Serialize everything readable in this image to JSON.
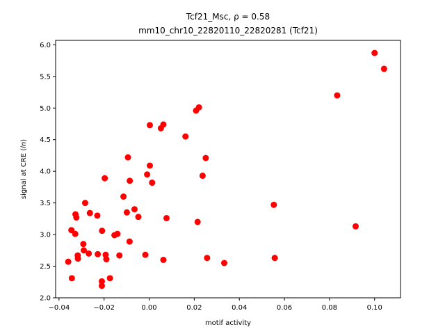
{
  "chart_data": {
    "type": "scatter",
    "title_line1": "Tcf21_Msc, ρ = 0.58",
    "title_line2": "mm10_chr10_22820110_22820281 (Tcf21)",
    "xlabel": "motif activity",
    "ylabel_prefix": "signal at CRE (",
    "ylabel_italic": "ln",
    "ylabel_suffix": ")",
    "xlim": [
      -0.0415,
      0.1115
    ],
    "ylim": [
      2.0,
      6.07
    ],
    "xticks": [
      -0.04,
      -0.02,
      0.0,
      0.02,
      0.04,
      0.06,
      0.08,
      0.1
    ],
    "xtick_labels": [
      "−0.04",
      "−0.02",
      "0.00",
      "0.02",
      "0.04",
      "0.06",
      "0.08",
      "0.10"
    ],
    "yticks": [
      2.0,
      2.5,
      3.0,
      3.5,
      4.0,
      4.5,
      5.0,
      5.5,
      6.0
    ],
    "ytick_labels": [
      "2.0",
      "2.5",
      "3.0",
      "3.5",
      "4.0",
      "4.5",
      "5.0",
      "5.5",
      "6.0"
    ],
    "grid": false,
    "marker_color": "#ff0000",
    "points": [
      {
        "x": 0.1,
        "y": 5.87
      },
      {
        "x": 0.1042,
        "y": 5.62
      },
      {
        "x": 0.0834,
        "y": 5.2
      },
      {
        "x": 0.0916,
        "y": 3.13
      },
      {
        "x": 0.0553,
        "y": 3.47
      },
      {
        "x": 0.0557,
        "y": 2.63
      },
      {
        "x": 0.0333,
        "y": 2.55
      },
      {
        "x": 0.0257,
        "y": 2.63
      },
      {
        "x": 0.0221,
        "y": 5.01
      },
      {
        "x": 0.0208,
        "y": 4.96
      },
      {
        "x": 0.0161,
        "y": 4.55
      },
      {
        "x": 0.0251,
        "y": 4.21
      },
      {
        "x": 0.0237,
        "y": 3.93
      },
      {
        "x": 0.0215,
        "y": 3.2
      },
      {
        "x": 0.0063,
        "y": 4.74
      },
      {
        "x": 0.0052,
        "y": 4.68
      },
      {
        "x": 0.0003,
        "y": 4.73
      },
      {
        "x": 0.0003,
        "y": 4.09
      },
      {
        "x": -0.0009,
        "y": 3.95
      },
      {
        "x": 0.0013,
        "y": 3.82
      },
      {
        "x": 0.0077,
        "y": 3.26
      },
      {
        "x": 0.0063,
        "y": 2.6
      },
      {
        "x": -0.0017,
        "y": 2.68
      },
      {
        "x": -0.0094,
        "y": 4.22
      },
      {
        "x": -0.0086,
        "y": 3.85
      },
      {
        "x": -0.0114,
        "y": 3.6
      },
      {
        "x": -0.0099,
        "y": 3.35
      },
      {
        "x": -0.0065,
        "y": 3.4
      },
      {
        "x": -0.0048,
        "y": 3.28
      },
      {
        "x": -0.0087,
        "y": 2.89
      },
      {
        "x": -0.0141,
        "y": 3.01
      },
      {
        "x": -0.0154,
        "y": 2.99
      },
      {
        "x": -0.0132,
        "y": 2.67
      },
      {
        "x": -0.0197,
        "y": 3.89
      },
      {
        "x": -0.023,
        "y": 3.3
      },
      {
        "x": -0.0209,
        "y": 3.06
      },
      {
        "x": -0.0228,
        "y": 2.69
      },
      {
        "x": -0.0193,
        "y": 2.68
      },
      {
        "x": -0.019,
        "y": 2.61
      },
      {
        "x": -0.0174,
        "y": 2.31
      },
      {
        "x": -0.021,
        "y": 2.26
      },
      {
        "x": -0.021,
        "y": 2.19
      },
      {
        "x": -0.0284,
        "y": 3.5
      },
      {
        "x": -0.0263,
        "y": 3.34
      },
      {
        "x": -0.0327,
        "y": 3.32
      },
      {
        "x": -0.0323,
        "y": 3.27
      },
      {
        "x": -0.0345,
        "y": 3.07
      },
      {
        "x": -0.0328,
        "y": 3.01
      },
      {
        "x": -0.0292,
        "y": 2.85
      },
      {
        "x": -0.029,
        "y": 2.75
      },
      {
        "x": -0.0268,
        "y": 2.7
      },
      {
        "x": -0.0317,
        "y": 2.67
      },
      {
        "x": -0.0316,
        "y": 2.62
      },
      {
        "x": -0.0359,
        "y": 2.57
      },
      {
        "x": -0.0343,
        "y": 2.31
      }
    ]
  }
}
